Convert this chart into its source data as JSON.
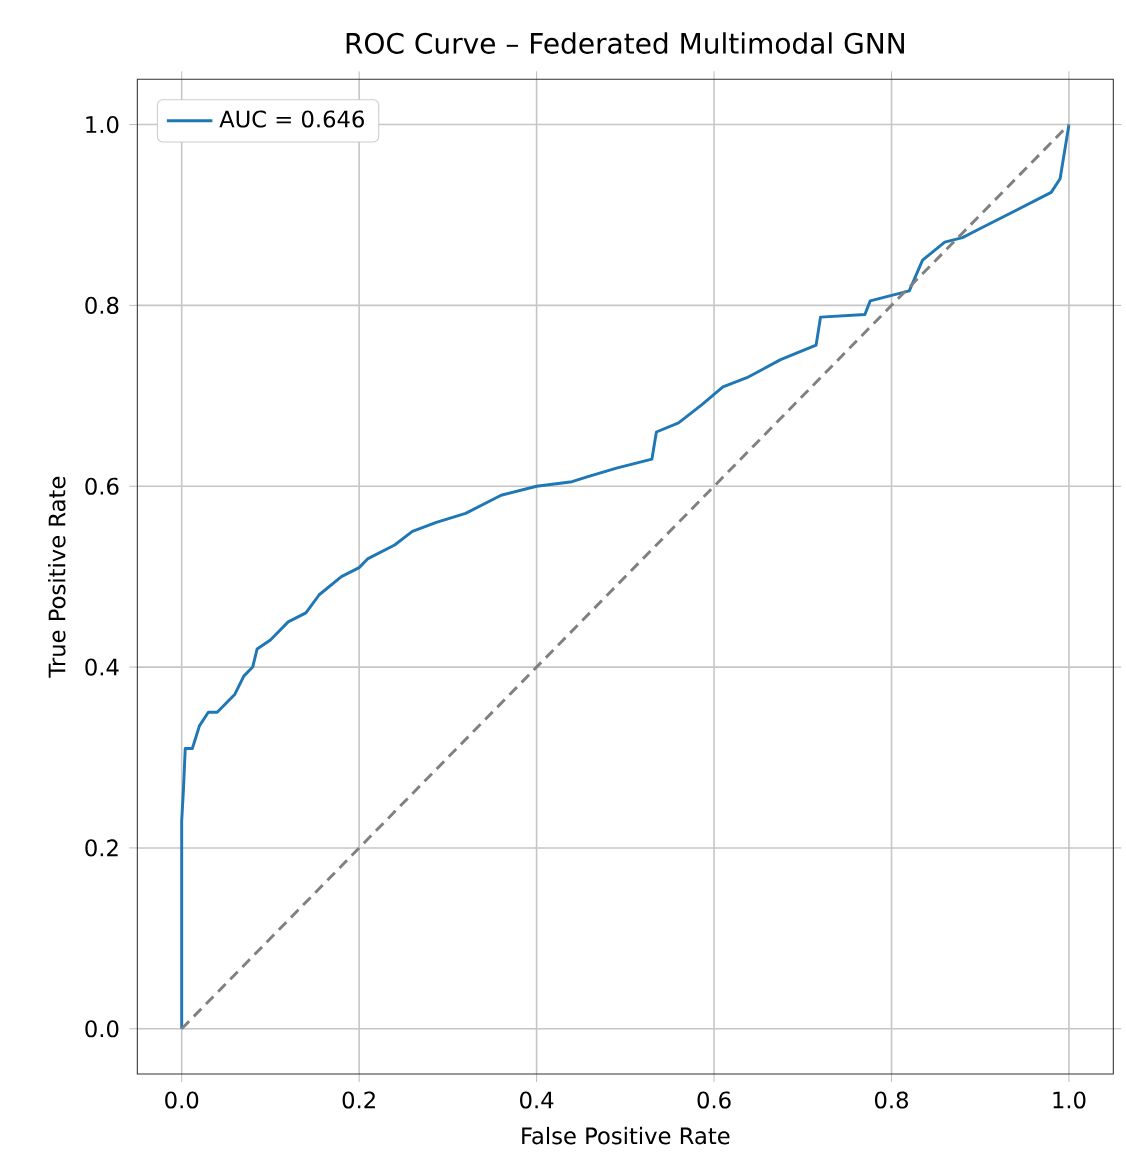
{
  "chart_data": {
    "type": "line",
    "title": "ROC Curve – Federated Multimodal GNN",
    "xlabel": "False Positive Rate",
    "ylabel": "True Positive Rate",
    "xlim": [
      -0.05,
      1.05
    ],
    "ylim": [
      -0.05,
      1.05
    ],
    "xticks": [
      {
        "value": 0,
        "label": "0.0"
      },
      {
        "value": 0.2,
        "label": "0.2"
      },
      {
        "value": 0.4,
        "label": "0.4"
      },
      {
        "value": 0.6,
        "label": "0.6"
      },
      {
        "value": 0.8,
        "label": "0.8"
      },
      {
        "value": 1,
        "label": "1.0"
      }
    ],
    "yticks": [
      {
        "value": 0,
        "label": "0.0"
      },
      {
        "value": 0.2,
        "label": "0.2"
      },
      {
        "value": 0.4,
        "label": "0.4"
      },
      {
        "value": 0.6,
        "label": "0.6"
      },
      {
        "value": 0.8,
        "label": "0.8"
      },
      {
        "value": 1,
        "label": "1.0"
      }
    ],
    "grid": true,
    "legend": "top left",
    "series": [
      {
        "name": "AUC = 0.646",
        "color": "#1f77b4",
        "line_style": "solid",
        "x": [
          0,
          0,
          0.002,
          0.004,
          0.012,
          0.02,
          0.03,
          0.04,
          0.06,
          0.07,
          0.08,
          0.085,
          0.1,
          0.12,
          0.14,
          0.155,
          0.18,
          0.2,
          0.21,
          0.24,
          0.26,
          0.287,
          0.32,
          0.36,
          0.4,
          0.44,
          0.456,
          0.49,
          0.53,
          0.535,
          0.56,
          0.586,
          0.61,
          0.637,
          0.675,
          0.715,
          0.72,
          0.77,
          0.776,
          0.82,
          0.835,
          0.86,
          0.88,
          0.9,
          0.92,
          0.94,
          0.96,
          0.98,
          0.99,
          0.995,
          1.0
        ],
        "values": [
          0,
          0.23,
          0.265,
          0.31,
          0.31,
          0.335,
          0.35,
          0.35,
          0.37,
          0.39,
          0.4,
          0.42,
          0.43,
          0.45,
          0.46,
          0.48,
          0.5,
          0.51,
          0.52,
          0.535,
          0.55,
          0.56,
          0.57,
          0.59,
          0.6,
          0.605,
          0.61,
          0.62,
          0.63,
          0.66,
          0.67,
          0.69,
          0.71,
          0.72,
          0.74,
          0.756,
          0.787,
          0.79,
          0.805,
          0.816,
          0.85,
          0.87,
          0.875,
          0.885,
          0.895,
          0.905,
          0.915,
          0.925,
          0.94,
          0.97,
          1.0
        ]
      },
      {
        "color": "#808080",
        "line_style": "dashed",
        "x": [
          0,
          1
        ],
        "values": [
          0,
          1
        ]
      }
    ]
  }
}
